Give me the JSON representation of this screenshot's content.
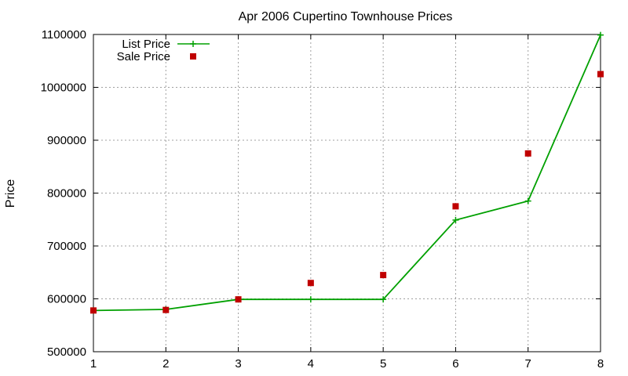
{
  "chart_data": {
    "type": "line",
    "title": "Apr 2006 Cupertino Townhouse Prices",
    "ylabel": "Price",
    "xlabel": "",
    "x": [
      1,
      2,
      3,
      4,
      5,
      6,
      7,
      8
    ],
    "xlim": [
      1,
      8
    ],
    "ylim": [
      500000,
      1100000
    ],
    "xticks": [
      "1",
      "2",
      "3",
      "4",
      "5",
      "6",
      "7",
      "8"
    ],
    "yticks": [
      "500000",
      "600000",
      "700000",
      "800000",
      "900000",
      "1000000",
      "1100000"
    ],
    "grid": true,
    "legend_position": "top-left",
    "series": [
      {
        "name": "List Price",
        "style": "line-with-plus-markers",
        "color": "#00a000",
        "values": [
          578000,
          580000,
          599000,
          599000,
          599000,
          749000,
          785000,
          1099000
        ]
      },
      {
        "name": "Sale Price",
        "style": "square-markers",
        "color": "#c00000",
        "values": [
          578000,
          579000,
          599000,
          630000,
          645000,
          775000,
          875000,
          1025000
        ]
      }
    ]
  }
}
